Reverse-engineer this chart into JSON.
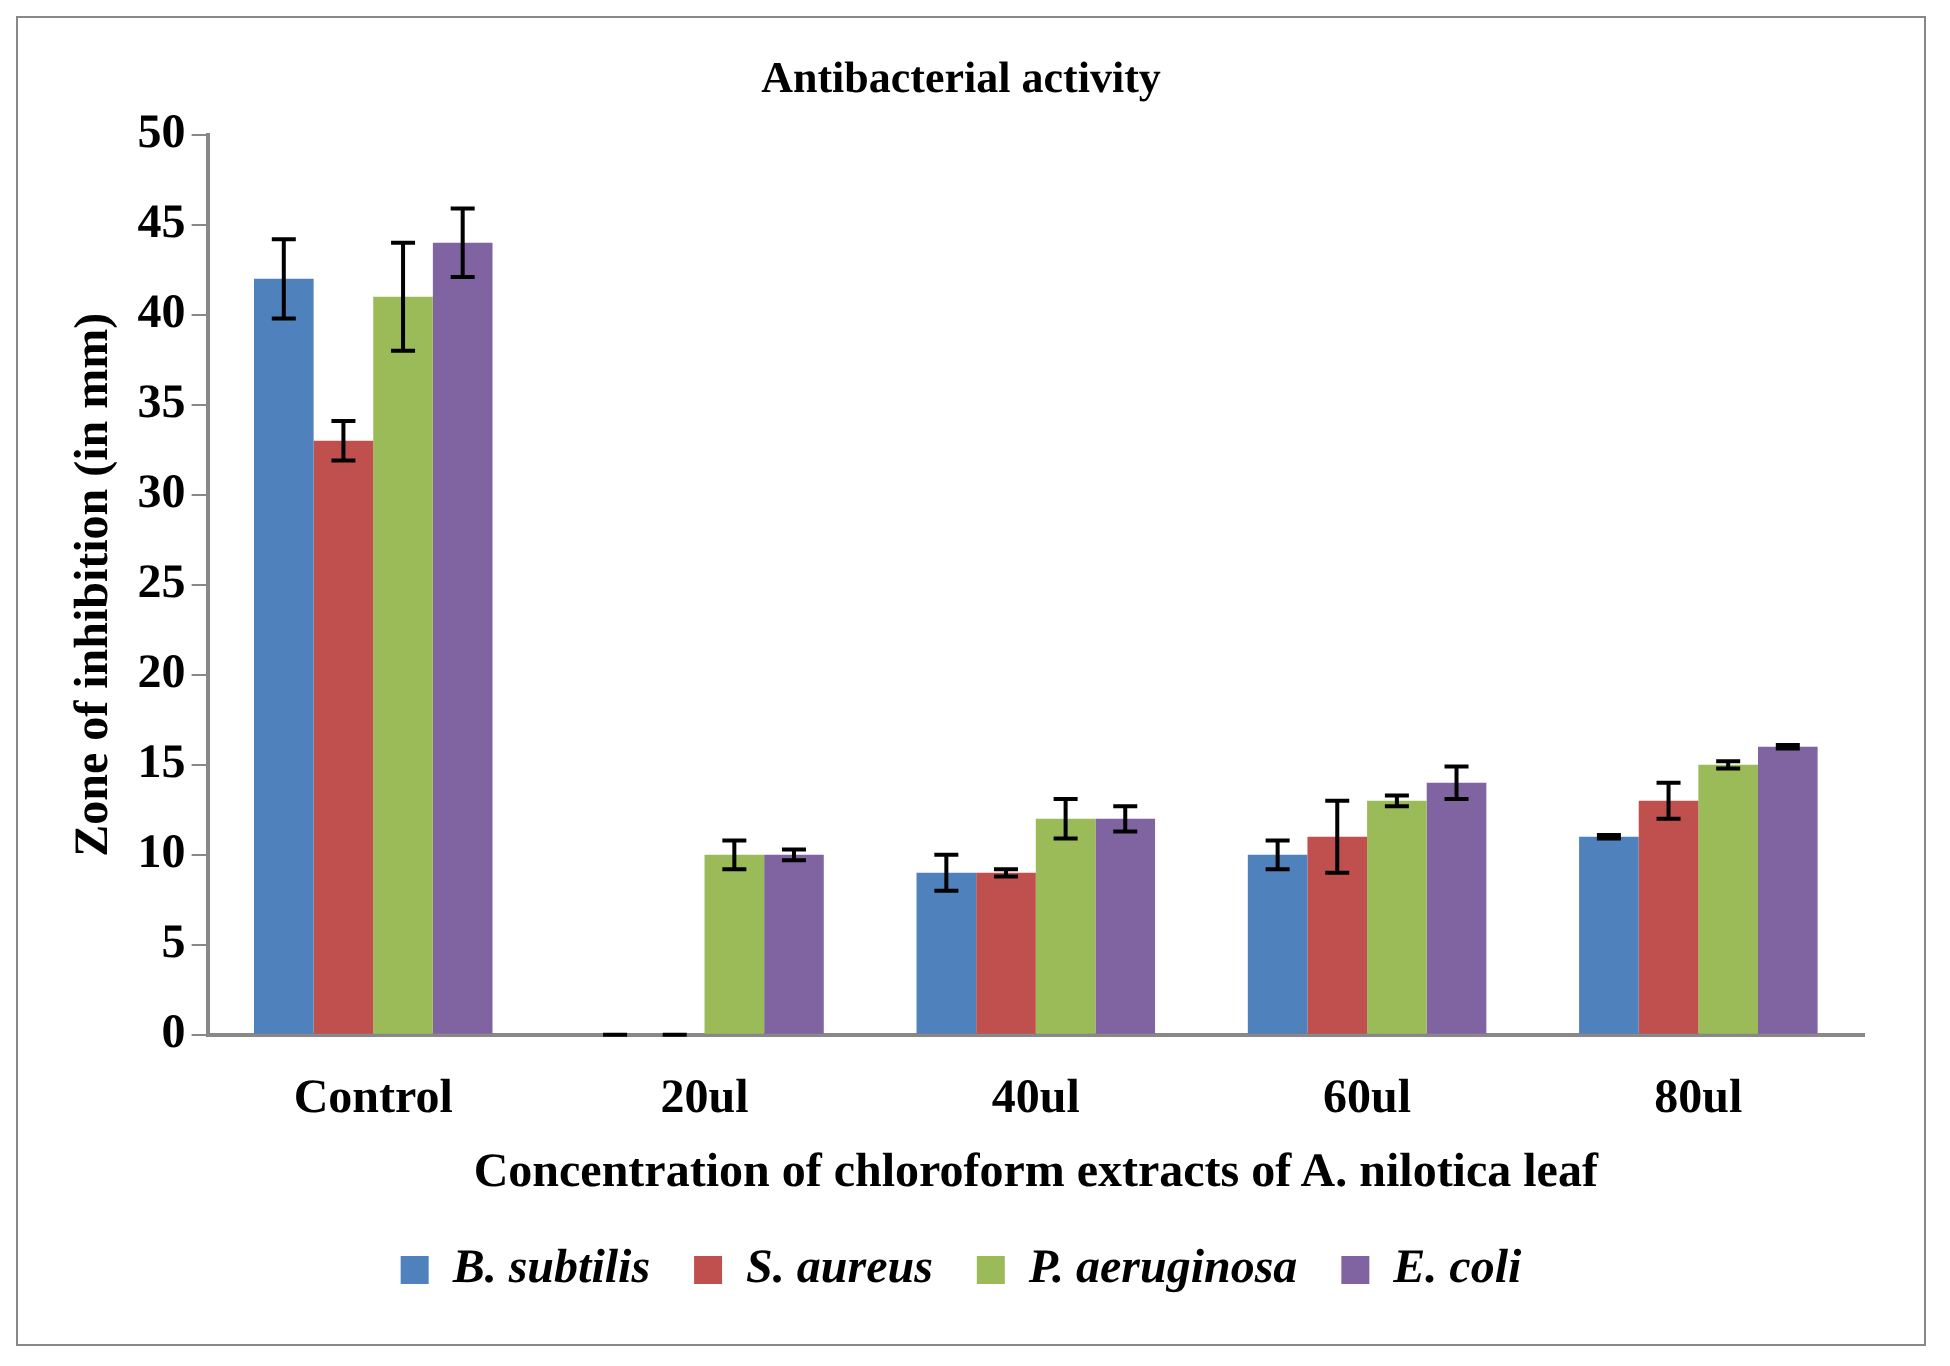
{
  "chart_data": {
    "type": "bar",
    "title": "Antibacterial activity",
    "xlabel": "Concentration of chloroform extracts of A. nilotica leaf",
    "ylabel": "Zone of inhibition (in mm)",
    "categories": [
      "Control",
      "20ul",
      "40ul",
      "60ul",
      "80ul"
    ],
    "series": [
      {
        "name": "B. subtilis",
        "color": "#4f81bd",
        "values": [
          42,
          0,
          9,
          10,
          11
        ],
        "errors": [
          2.2,
          0,
          1,
          0.8,
          0.1
        ]
      },
      {
        "name": "S. aureus",
        "color": "#c0504d",
        "values": [
          33,
          0,
          9,
          11,
          13
        ],
        "errors": [
          1.1,
          0,
          0.2,
          2,
          1
        ]
      },
      {
        "name": "P. aeruginosa",
        "color": "#9bbb59",
        "values": [
          41,
          10,
          12,
          13,
          15
        ],
        "errors": [
          3,
          0.8,
          1.1,
          0.3,
          0.2
        ]
      },
      {
        "name": "E. coli",
        "color": "#8064a2",
        "values": [
          44,
          10,
          12,
          14,
          16
        ],
        "errors": [
          1.9,
          0.3,
          0.7,
          0.9,
          0.1
        ]
      }
    ],
    "ylim": [
      0,
      50
    ],
    "yticks": [
      0,
      5,
      10,
      15,
      20,
      25,
      30,
      35,
      40,
      45,
      50
    ],
    "grid": false,
    "legend": "bottom"
  }
}
